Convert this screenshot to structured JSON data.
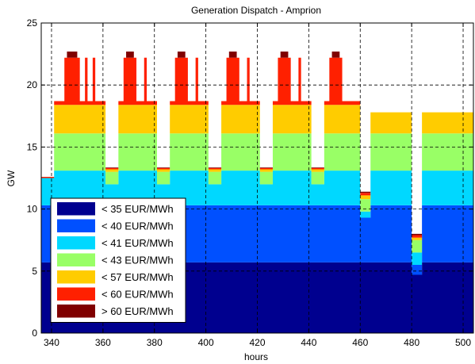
{
  "chart_data": {
    "type": "area",
    "stacked": true,
    "step": true,
    "title": "Generation Dispatch - Amprion",
    "xlabel": "hours",
    "ylabel": "GW",
    "xlim": [
      336,
      504
    ],
    "ylim": [
      0,
      25
    ],
    "xticks": [
      340,
      360,
      380,
      400,
      420,
      440,
      460,
      480,
      500
    ],
    "yticks": [
      0,
      5,
      10,
      15,
      20,
      25
    ],
    "grid": true,
    "legend_position": "lower-left",
    "x": [
      336,
      338,
      341,
      343,
      345,
      346,
      348,
      350,
      351,
      352,
      353,
      354,
      356,
      357,
      360,
      361,
      364,
      366,
      368,
      369,
      371,
      372,
      373,
      374,
      376,
      377,
      380,
      381,
      384,
      386,
      388,
      389,
      391,
      392,
      393,
      394,
      396,
      397,
      400,
      401,
      404,
      406,
      408,
      409,
      411,
      412,
      413,
      414,
      416,
      417,
      420,
      421,
      424,
      426,
      428,
      429,
      431,
      432,
      433,
      434,
      436,
      437,
      440,
      441,
      444,
      446,
      448,
      449,
      451,
      452,
      453,
      454,
      456,
      457,
      460,
      461,
      464,
      466,
      468,
      469,
      471,
      472,
      473,
      474,
      476,
      477,
      480,
      481,
      484,
      486,
      488,
      489,
      491,
      492,
      493,
      494,
      496,
      497,
      500,
      501,
      504
    ],
    "series": [
      {
        "name": "< 35 EUR/MWh",
        "color": "#00008F",
        "values": [
          5.7,
          5.7,
          5.7,
          5.7,
          5.7,
          5.7,
          5.7,
          5.7,
          5.7,
          5.7,
          5.7,
          5.7,
          5.7,
          5.7,
          5.7,
          5.7,
          5.7,
          5.7,
          5.7,
          5.7,
          5.7,
          5.7,
          5.7,
          5.7,
          5.7,
          5.7,
          5.7,
          5.7,
          5.7,
          5.7,
          5.7,
          5.7,
          5.7,
          5.7,
          5.7,
          5.7,
          5.7,
          5.7,
          5.7,
          5.7,
          5.7,
          5.7,
          5.7,
          5.7,
          5.7,
          5.7,
          5.7,
          5.7,
          5.7,
          5.7,
          5.7,
          5.7,
          5.7,
          5.7,
          5.7,
          5.7,
          5.7,
          5.7,
          5.7,
          5.7,
          5.7,
          5.7,
          5.7,
          5.7,
          5.7,
          5.7,
          5.7,
          5.7,
          5.7,
          5.7,
          5.7,
          5.7,
          5.7,
          5.7,
          5.7,
          5.7,
          5.7,
          5.7,
          5.7,
          5.7,
          5.7,
          5.7,
          5.7,
          5.7,
          5.7,
          5.7,
          4.7,
          4.7,
          5.7,
          5.7,
          5.7,
          5.7,
          5.7,
          5.7,
          5.7,
          5.7,
          5.7,
          5.7,
          5.7,
          5.7,
          5.7
        ]
      },
      {
        "name": "< 40 EUR/MWh",
        "color": "#0050FF",
        "values": [
          4.6,
          4.6,
          4.6,
          4.6,
          4.6,
          4.6,
          4.6,
          4.6,
          4.6,
          4.6,
          4.6,
          4.6,
          4.6,
          4.6,
          4.6,
          4.6,
          4.6,
          4.6,
          4.6,
          4.6,
          4.6,
          4.6,
          4.6,
          4.6,
          4.6,
          4.6,
          4.6,
          4.6,
          4.6,
          4.6,
          4.6,
          4.6,
          4.6,
          4.6,
          4.6,
          4.6,
          4.6,
          4.6,
          4.6,
          4.6,
          4.6,
          4.6,
          4.6,
          4.6,
          4.6,
          4.6,
          4.6,
          4.6,
          4.6,
          4.6,
          4.6,
          4.6,
          4.6,
          4.6,
          4.6,
          4.6,
          4.6,
          4.6,
          4.6,
          4.6,
          4.6,
          4.6,
          4.6,
          4.6,
          4.6,
          4.6,
          4.6,
          4.6,
          4.6,
          4.6,
          4.6,
          4.6,
          4.6,
          4.6,
          3.6,
          3.6,
          4.6,
          4.6,
          4.6,
          4.6,
          4.6,
          4.6,
          4.6,
          4.6,
          4.6,
          4.6,
          0.8,
          0.8,
          4.6,
          4.6,
          4.6,
          4.6,
          4.6,
          4.6,
          4.6,
          4.6,
          4.6,
          4.6,
          4.6,
          4.6,
          4.6
        ]
      },
      {
        "name": "< 41 EUR/MWh",
        "color": "#00D8FF",
        "values": [
          2.2,
          2.2,
          2.8,
          2.8,
          2.8,
          2.8,
          2.8,
          2.8,
          2.8,
          2.8,
          2.8,
          2.8,
          2.8,
          2.8,
          2.8,
          1.7,
          1.7,
          2.8,
          2.8,
          2.8,
          2.8,
          2.8,
          2.8,
          2.8,
          2.8,
          2.8,
          2.8,
          1.7,
          1.7,
          2.8,
          2.8,
          2.8,
          2.8,
          2.8,
          2.8,
          2.8,
          2.8,
          2.8,
          2.8,
          1.7,
          1.7,
          2.8,
          2.8,
          2.8,
          2.8,
          2.8,
          2.8,
          2.8,
          2.8,
          2.8,
          2.8,
          1.7,
          1.7,
          2.8,
          2.8,
          2.8,
          2.8,
          2.8,
          2.8,
          2.8,
          2.8,
          2.8,
          2.8,
          1.7,
          1.7,
          2.8,
          2.8,
          2.8,
          2.8,
          2.8,
          2.8,
          2.8,
          2.8,
          2.8,
          0.5,
          0.5,
          2.8,
          2.8,
          2.8,
          2.8,
          2.8,
          2.8,
          2.8,
          2.8,
          2.8,
          2.8,
          1.0,
          1.0,
          2.8,
          2.8,
          2.8,
          2.8,
          2.8,
          2.8,
          2.8,
          2.8,
          2.8,
          2.8,
          2.8,
          2.8,
          2.8
        ]
      },
      {
        "name": "< 43 EUR/MWh",
        "color": "#99FF66",
        "values": [
          0,
          0,
          3.0,
          3.0,
          3.0,
          3.0,
          3.0,
          3.0,
          3.0,
          3.0,
          3.0,
          3.0,
          3.0,
          3.0,
          3.0,
          1.0,
          1.0,
          3.0,
          3.0,
          3.0,
          3.0,
          3.0,
          3.0,
          3.0,
          3.0,
          3.0,
          3.0,
          1.0,
          1.0,
          3.0,
          3.0,
          3.0,
          3.0,
          3.0,
          3.0,
          3.0,
          3.0,
          3.0,
          3.0,
          1.0,
          1.0,
          3.0,
          3.0,
          3.0,
          3.0,
          3.0,
          3.0,
          3.0,
          3.0,
          3.0,
          3.0,
          1.0,
          1.0,
          3.0,
          3.0,
          3.0,
          3.0,
          3.0,
          3.0,
          3.0,
          3.0,
          3.0,
          3.0,
          1.0,
          1.0,
          3.0,
          3.0,
          3.0,
          3.0,
          3.0,
          3.0,
          3.0,
          3.0,
          3.0,
          1.0,
          1.0,
          3.0,
          3.0,
          3.0,
          3.0,
          3.0,
          3.0,
          3.0,
          3.0,
          3.0,
          3.0,
          1.0,
          1.0,
          3.0,
          3.0,
          3.0,
          3.0,
          3.0,
          3.0,
          3.0,
          3.0,
          3.0,
          3.0,
          3.0,
          3.0,
          3.0
        ]
      },
      {
        "name": "< 57 EUR/MWh",
        "color": "#FFCC00",
        "values": [
          0,
          0,
          2.3,
          2.3,
          2.3,
          2.3,
          2.3,
          2.3,
          2.3,
          2.3,
          2.3,
          2.3,
          2.3,
          2.3,
          2.3,
          0.2,
          0.2,
          2.3,
          2.3,
          2.3,
          2.3,
          2.3,
          2.3,
          2.3,
          2.3,
          2.3,
          2.3,
          0.2,
          0.2,
          2.3,
          2.3,
          2.3,
          2.3,
          2.3,
          2.3,
          2.3,
          2.3,
          2.3,
          2.3,
          0.2,
          0.2,
          2.3,
          2.3,
          2.3,
          2.3,
          2.3,
          2.3,
          2.3,
          2.3,
          2.3,
          2.3,
          0.2,
          0.2,
          2.3,
          2.3,
          2.3,
          2.3,
          2.3,
          2.3,
          2.3,
          2.3,
          2.3,
          2.3,
          0.2,
          0.2,
          2.3,
          2.3,
          2.3,
          2.3,
          2.3,
          2.3,
          2.3,
          2.3,
          2.3,
          0.3,
          0.3,
          1.7,
          1.7,
          1.7,
          1.7,
          1.7,
          1.7,
          1.7,
          1.7,
          1.7,
          1.7,
          0.2,
          0.2,
          1.7,
          1.7,
          1.7,
          1.7,
          1.7,
          1.7,
          1.7,
          1.7,
          1.7,
          1.7,
          1.7,
          1.7,
          1.7
        ]
      },
      {
        "name": "< 60 EUR/MWh",
        "color": "#FF2000",
        "values": [
          0.1,
          0.1,
          0.3,
          0.3,
          3.8,
          3.8,
          3.8,
          3.8,
          0.3,
          0.3,
          3.8,
          0.3,
          3.8,
          0.3,
          0.3,
          0.1,
          0.1,
          0.3,
          3.8,
          3.8,
          3.8,
          3.8,
          0.3,
          0.3,
          3.8,
          0.3,
          0.3,
          0.1,
          0.1,
          0.3,
          3.8,
          3.8,
          3.8,
          3.8,
          0.3,
          0.3,
          3.8,
          0.3,
          0.3,
          0.1,
          0.1,
          0.3,
          3.8,
          3.8,
          3.8,
          3.8,
          0.3,
          0.3,
          3.8,
          0.3,
          0.3,
          0.1,
          0.1,
          0.3,
          3.8,
          3.8,
          3.8,
          3.8,
          0.3,
          0.3,
          3.8,
          0.3,
          0.3,
          0.1,
          0.1,
          0.3,
          3.8,
          3.8,
          3.8,
          3.8,
          0.3,
          0.3,
          0.3,
          0.3,
          0.2,
          0.2,
          0,
          0,
          0,
          0,
          0,
          0,
          0,
          0,
          0,
          0,
          0.2,
          0.2,
          0,
          0,
          0,
          0,
          0,
          0,
          0,
          0,
          0,
          0,
          0,
          0,
          0
        ]
      },
      {
        "name": "> 60 EUR/MWh",
        "color": "#800000",
        "values": [
          0,
          0,
          0,
          0,
          0,
          0.5,
          0.5,
          0,
          0,
          0,
          0,
          0,
          0,
          0,
          0,
          0.05,
          0.05,
          0,
          0,
          0.5,
          0.5,
          0,
          0,
          0,
          0,
          0,
          0,
          0.05,
          0.05,
          0,
          0,
          0.5,
          0.5,
          0,
          0,
          0,
          0,
          0,
          0,
          0.05,
          0.05,
          0,
          0,
          0.5,
          0.5,
          0,
          0,
          0,
          0,
          0,
          0,
          0.05,
          0.05,
          0,
          0,
          0.5,
          0.5,
          0,
          0,
          0,
          0,
          0,
          0,
          0.05,
          0.05,
          0,
          0,
          0.5,
          0.5,
          0,
          0,
          0,
          0,
          0,
          0.1,
          0.1,
          0,
          0,
          0,
          0,
          0,
          0,
          0,
          0,
          0,
          0,
          0.1,
          0.1,
          0,
          0,
          0,
          0,
          0,
          0,
          0,
          0,
          0,
          0,
          0,
          0,
          0
        ]
      }
    ]
  }
}
